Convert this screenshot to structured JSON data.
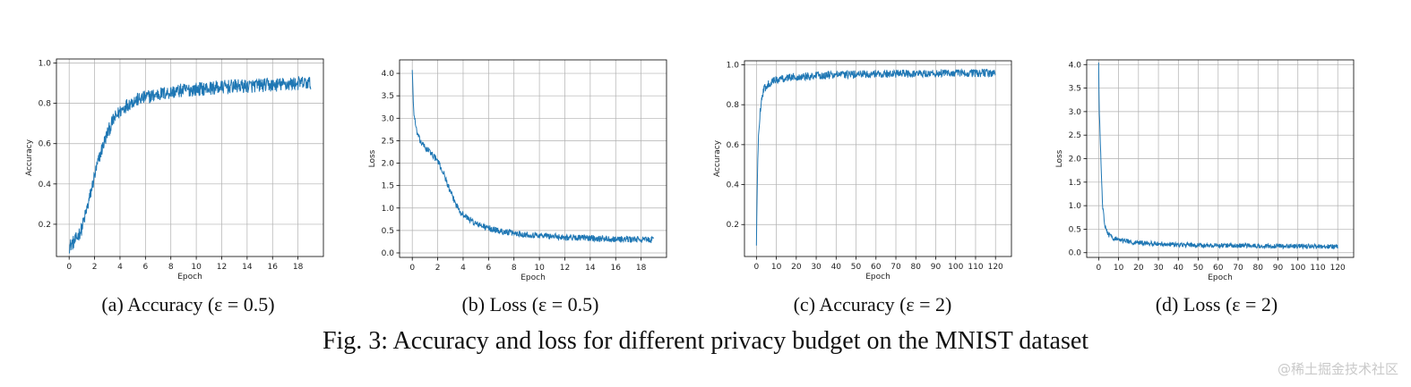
{
  "figure": {
    "caption": "Fig. 3: Accuracy and loss for different privacy budget on the MNIST dataset",
    "watermark": "@稀土掘金技术社区"
  },
  "style": {
    "line_color": "#1f77b4",
    "grid_color": "#b0b0b0"
  },
  "chart_data": [
    {
      "type": "line",
      "caption": "(a) Accuracy (ε = 0.5)",
      "xlabel": "Epoch",
      "ylabel": "Accuracy",
      "xlim": [
        -1,
        20
      ],
      "ylim": [
        0.04,
        1.02
      ],
      "xticks": [
        0,
        2,
        4,
        6,
        8,
        10,
        12,
        14,
        16,
        18
      ],
      "yticks": [
        0.2,
        0.4,
        0.6,
        0.8,
        1.0
      ],
      "ytick_labels": [
        "0.2",
        "0.4",
        "0.6",
        "0.8",
        "1.0"
      ],
      "grid": true,
      "x": [
        0,
        0.5,
        1,
        1.5,
        2,
        2.5,
        3,
        3.5,
        4,
        4.5,
        5,
        6,
        7,
        8,
        9,
        10,
        11,
        12,
        13,
        14,
        15,
        16,
        17,
        18,
        19
      ],
      "series": [
        {
          "values": [
            0.09,
            0.12,
            0.18,
            0.3,
            0.44,
            0.56,
            0.65,
            0.72,
            0.76,
            0.79,
            0.81,
            0.83,
            0.845,
            0.855,
            0.865,
            0.87,
            0.875,
            0.88,
            0.885,
            0.885,
            0.89,
            0.89,
            0.895,
            0.9,
            0.9
          ],
          "noise": 0.035
        }
      ]
    },
    {
      "type": "line",
      "caption": "(b) Loss (ε = 0.5)",
      "xlabel": "Epoch",
      "ylabel": "Loss",
      "xlim": [
        -1,
        20
      ],
      "ylim": [
        -0.1,
        4.3
      ],
      "xticks": [
        0,
        2,
        4,
        6,
        8,
        10,
        12,
        14,
        16,
        18
      ],
      "yticks": [
        0,
        0.5,
        1.0,
        1.5,
        2.0,
        2.5,
        3.0,
        3.5,
        4.0
      ],
      "ytick_labels": [
        "0.0",
        "0.5",
        "1.0",
        "1.5",
        "2.0",
        "2.5",
        "3.0",
        "3.5",
        "4.0"
      ],
      "grid": true,
      "x": [
        0,
        0.1,
        0.3,
        0.6,
        1,
        1.5,
        2,
        2.5,
        3,
        3.5,
        4,
        5,
        6,
        7,
        8,
        9,
        10,
        11,
        12,
        13,
        14,
        15,
        16,
        17,
        18,
        19
      ],
      "series": [
        {
          "values": [
            4.1,
            3.2,
            2.75,
            2.5,
            2.35,
            2.22,
            2.05,
            1.75,
            1.35,
            1.05,
            0.85,
            0.65,
            0.55,
            0.48,
            0.44,
            0.41,
            0.39,
            0.37,
            0.35,
            0.34,
            0.33,
            0.32,
            0.31,
            0.3,
            0.3,
            0.29
          ],
          "noise": 0.07
        }
      ]
    },
    {
      "type": "line",
      "caption": "(c) Accuracy (ε = 2)",
      "xlabel": "Epoch",
      "ylabel": "Accuracy",
      "xlim": [
        -6,
        128
      ],
      "ylim": [
        0.04,
        1.02
      ],
      "xticks": [
        0,
        10,
        20,
        30,
        40,
        50,
        60,
        70,
        80,
        90,
        100,
        110,
        120
      ],
      "yticks": [
        0.2,
        0.4,
        0.6,
        0.8,
        1.0
      ],
      "ytick_labels": [
        "0.2",
        "0.4",
        "0.6",
        "0.8",
        "1.0"
      ],
      "grid": true,
      "x": [
        0,
        0.5,
        1,
        2,
        3,
        4,
        6,
        8,
        10,
        15,
        20,
        30,
        40,
        50,
        60,
        70,
        80,
        90,
        100,
        110,
        120
      ],
      "series": [
        {
          "values": [
            0.09,
            0.45,
            0.65,
            0.78,
            0.85,
            0.88,
            0.905,
            0.915,
            0.925,
            0.935,
            0.94,
            0.945,
            0.95,
            0.952,
            0.954,
            0.955,
            0.956,
            0.957,
            0.958,
            0.958,
            0.958
          ],
          "noise": 0.02
        }
      ]
    },
    {
      "type": "line",
      "caption": "(d) Loss (ε = 2)",
      "xlabel": "Epoch",
      "ylabel": "Loss",
      "xlim": [
        -6,
        128
      ],
      "ylim": [
        -0.1,
        4.1
      ],
      "xticks": [
        0,
        10,
        20,
        30,
        40,
        50,
        60,
        70,
        80,
        90,
        100,
        110,
        120
      ],
      "yticks": [
        0,
        0.5,
        1.0,
        1.5,
        2.0,
        2.5,
        3.0,
        3.5,
        4.0
      ],
      "ytick_labels": [
        "0.0",
        "0.5",
        "1.0",
        "1.5",
        "2.0",
        "2.5",
        "3.0",
        "3.5",
        "4.0"
      ],
      "grid": true,
      "x": [
        0,
        0.3,
        1,
        1.5,
        2,
        3,
        4,
        5,
        7,
        10,
        15,
        20,
        30,
        40,
        50,
        60,
        70,
        80,
        90,
        100,
        110,
        120
      ],
      "series": [
        {
          "values": [
            4.0,
            3.0,
            2.2,
            1.5,
            1.0,
            0.6,
            0.45,
            0.38,
            0.32,
            0.28,
            0.24,
            0.21,
            0.19,
            0.17,
            0.16,
            0.155,
            0.15,
            0.145,
            0.14,
            0.14,
            0.135,
            0.13
          ],
          "noise": 0.05
        }
      ]
    }
  ]
}
